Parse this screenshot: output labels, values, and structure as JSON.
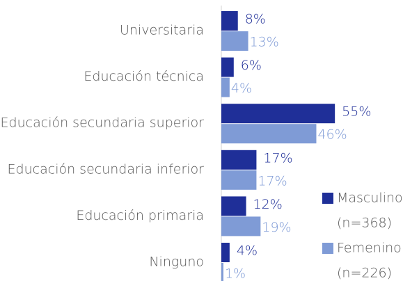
{
  "chart_data": {
    "type": "barh",
    "categories": [
      "Universitaria",
      "Educación técnica",
      "Educación secundaria superior",
      "Educación secundaria inferior",
      "Educación primaria",
      "Ninguno"
    ],
    "series": [
      {
        "name": "Masculino",
        "n_label": "(n=368)",
        "color": "#1f2f98",
        "values": [
          8,
          6,
          55,
          17,
          12,
          4
        ],
        "value_labels": [
          "8%",
          "6%",
          "55%",
          "17%",
          "12%",
          "4%"
        ]
      },
      {
        "name": "Femenino",
        "n_label": "(n=226)",
        "color": "#7f9bd6",
        "values": [
          13,
          4,
          46,
          17,
          19,
          1
        ],
        "value_labels": [
          "13%",
          "4%",
          "46%",
          "17%",
          "19%",
          "1%"
        ]
      }
    ],
    "xlim": [
      0,
      60
    ]
  }
}
